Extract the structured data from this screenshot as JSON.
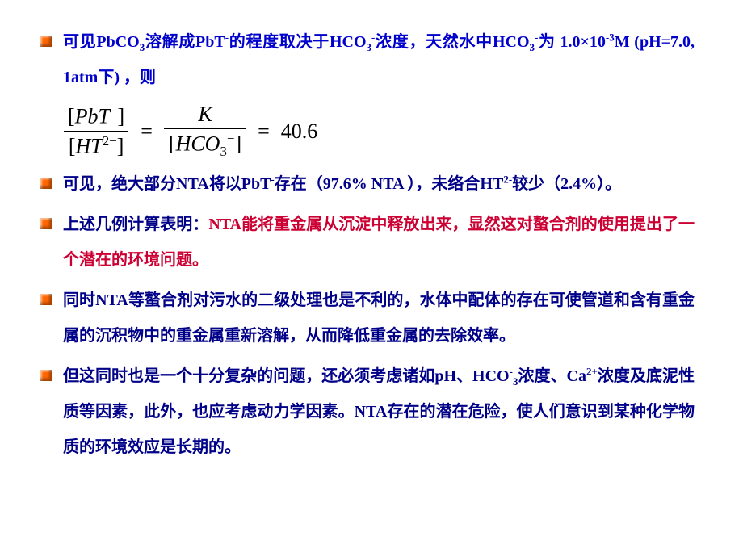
{
  "item1": {
    "p1": "可见PbCO",
    "p2": "溶解成PbT",
    "p3": "的程度取决于HCO",
    "p4": "浓度，天然水中HCO",
    "p5": "为",
    "line2a": "1.0×10",
    "line2b": "M  (pH=7.0, 1atm下) ，则"
  },
  "formula": {
    "n1_a": "[",
    "n1_b": "PbT",
    "n1_c": "]",
    "d1_a": "[",
    "d1_b": "HT",
    "d1_c": "]",
    "n2": "K",
    "d2_a": "[",
    "d2_b": "HCO",
    "d2_c": "]",
    "result": "40.6",
    "sup_minus": "−",
    "sup_2minus": "2−",
    "sub3": "3",
    "eq": "="
  },
  "item2": {
    "a": "可见，绝大部分NTA将以PbT",
    "b": "存在（97.6% NTA ），未络合HT",
    "c": "较少（2.4%）。",
    "sup_minus": "-",
    "sup_2minus": "2-"
  },
  "item3": {
    "a": "上述几例计算表明：",
    "b": "NTA能将重金属从沉淀中释放出来，显然这对螯合剂的使用提出了一个潜在的环境问题。"
  },
  "item4": "同时NTA等螯合剂对污水的二级处理也是不利的，水体中配体的存在可使管道和含有重金属的沉积物中的重金属重新溶解，从而降低重金属的去除效率。",
  "item5": {
    "a": "但这同时也是一个十分复杂的问题，还必须考虑诸如pH、HCO",
    "b": "浓度、Ca",
    "c": "浓度及底泥性质等因素，此外，也应考虑动力学因素。NTA存在的潜在危险，使人们意识到某种化学物质的环境效应是长期的。",
    "sup_minus": "-",
    "sub3": "3",
    "sup2p": "2+"
  },
  "subs": {
    "three": "3",
    "minus": "-",
    "m3": "-3"
  }
}
